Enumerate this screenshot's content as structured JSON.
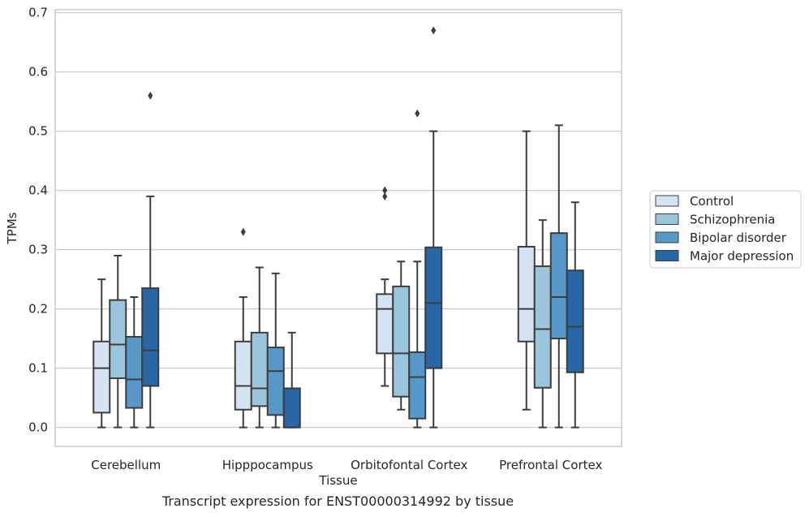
{
  "caption": "Transcript expression for ENST00000314992 by tissue",
  "chart_data": {
    "type": "box",
    "xlabel": "Tissue",
    "ylabel": "TPMs",
    "ylim": [
      -0.032,
      0.705
    ],
    "yticks": [
      0.0,
      0.1,
      0.2,
      0.3,
      0.4,
      0.5,
      0.6,
      0.7
    ],
    "grid": "horizontal",
    "legend_placement": "right-outside",
    "categories": [
      "Cerebellum",
      "Hipppocampus",
      "Orbitofontal Cortex",
      "Prefrontal Cortex"
    ],
    "series": [
      {
        "name": "Control",
        "color": "#d5e3f2",
        "boxes": [
          {
            "whislo": 0.0,
            "q1": 0.025,
            "med": 0.1,
            "q3": 0.145,
            "whishi": 0.25,
            "fliers": []
          },
          {
            "whislo": 0.0,
            "q1": 0.03,
            "med": 0.07,
            "q3": 0.145,
            "whishi": 0.22,
            "fliers": [
              0.33
            ]
          },
          {
            "whislo": 0.07,
            "q1": 0.125,
            "med": 0.2,
            "q3": 0.225,
            "whishi": 0.25,
            "fliers": [
              0.39,
              0.4
            ]
          },
          {
            "whislo": 0.03,
            "q1": 0.145,
            "med": 0.2,
            "q3": 0.305,
            "whishi": 0.5,
            "fliers": []
          }
        ]
      },
      {
        "name": "Schizophrenia",
        "color": "#9bc5db",
        "boxes": [
          {
            "whislo": 0.0,
            "q1": 0.083,
            "med": 0.14,
            "q3": 0.215,
            "whishi": 0.29,
            "fliers": []
          },
          {
            "whislo": 0.0,
            "q1": 0.036,
            "med": 0.066,
            "q3": 0.16,
            "whishi": 0.27,
            "fliers": []
          },
          {
            "whislo": 0.03,
            "q1": 0.052,
            "med": 0.125,
            "q3": 0.238,
            "whishi": 0.28,
            "fliers": []
          },
          {
            "whislo": 0.0,
            "q1": 0.067,
            "med": 0.166,
            "q3": 0.272,
            "whishi": 0.35,
            "fliers": []
          }
        ]
      },
      {
        "name": "Bipolar disorder",
        "color": "#5698c7",
        "boxes": [
          {
            "whislo": 0.0,
            "q1": 0.033,
            "med": 0.081,
            "q3": 0.153,
            "whishi": 0.22,
            "fliers": []
          },
          {
            "whislo": 0.0,
            "q1": 0.021,
            "med": 0.095,
            "q3": 0.135,
            "whishi": 0.26,
            "fliers": []
          },
          {
            "whislo": 0.0,
            "q1": 0.015,
            "med": 0.085,
            "q3": 0.127,
            "whishi": 0.28,
            "fliers": [
              0.53
            ]
          },
          {
            "whislo": 0.0,
            "q1": 0.15,
            "med": 0.22,
            "q3": 0.328,
            "whishi": 0.51,
            "fliers": []
          }
        ]
      },
      {
        "name": "Major depression",
        "color": "#2867a6",
        "boxes": [
          {
            "whislo": 0.0,
            "q1": 0.07,
            "med": 0.13,
            "q3": 0.235,
            "whishi": 0.39,
            "fliers": [
              0.56
            ]
          },
          {
            "whislo": 0.0,
            "q1": 0.0,
            "med": 0.0,
            "q3": 0.066,
            "whishi": 0.16,
            "fliers": []
          },
          {
            "whislo": 0.0,
            "q1": 0.1,
            "med": 0.21,
            "q3": 0.304,
            "whishi": 0.5,
            "fliers": [
              0.67
            ]
          },
          {
            "whislo": 0.0,
            "q1": 0.093,
            "med": 0.17,
            "q3": 0.265,
            "whishi": 0.38,
            "fliers": []
          }
        ]
      }
    ]
  }
}
